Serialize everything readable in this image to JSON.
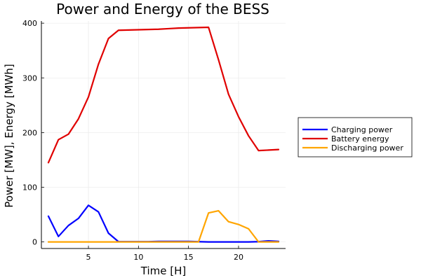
{
  "chart_data": {
    "type": "line",
    "title": "Power and Energy of the BESS",
    "xlabel": "Time [H]",
    "ylabel": "Power [MW], Energy [MWh]",
    "xlim": [
      0.3,
      24.7
    ],
    "ylim": [
      -12,
      404
    ],
    "xticks": [
      5,
      10,
      15,
      20
    ],
    "yticks": [
      0,
      100,
      200,
      300,
      400
    ],
    "grid": true,
    "legend_position": "outer-right",
    "x": [
      1,
      2,
      3,
      4,
      5,
      6,
      7,
      8,
      9,
      10,
      11,
      12,
      13,
      14,
      15,
      16,
      17,
      18,
      19,
      20,
      21,
      22,
      23,
      24
    ],
    "series": [
      {
        "name": "Charging power",
        "color": "#0000ff",
        "values": [
          47,
          10,
          30,
          43,
          67,
          55,
          16,
          0.5,
          0.5,
          0.5,
          0.5,
          1,
          1,
          1,
          1,
          0.5,
          0,
          0,
          0,
          0,
          0,
          0.5,
          2,
          1
        ]
      },
      {
        "name": "Battery energy",
        "color": "#e00000",
        "values": [
          145,
          187,
          197,
          225,
          265,
          325,
          372,
          387,
          387.5,
          388,
          388.5,
          389,
          390,
          391,
          391.5,
          392,
          392.5,
          333,
          270,
          229,
          194,
          167,
          168,
          169
        ]
      },
      {
        "name": "Discharging power",
        "color": "#ffa500",
        "values": [
          0,
          0,
          0,
          0,
          0,
          0,
          0,
          0,
          0,
          0,
          0,
          0,
          0,
          0,
          0,
          0,
          53,
          57,
          37,
          32,
          24,
          0,
          0,
          0
        ]
      }
    ]
  }
}
